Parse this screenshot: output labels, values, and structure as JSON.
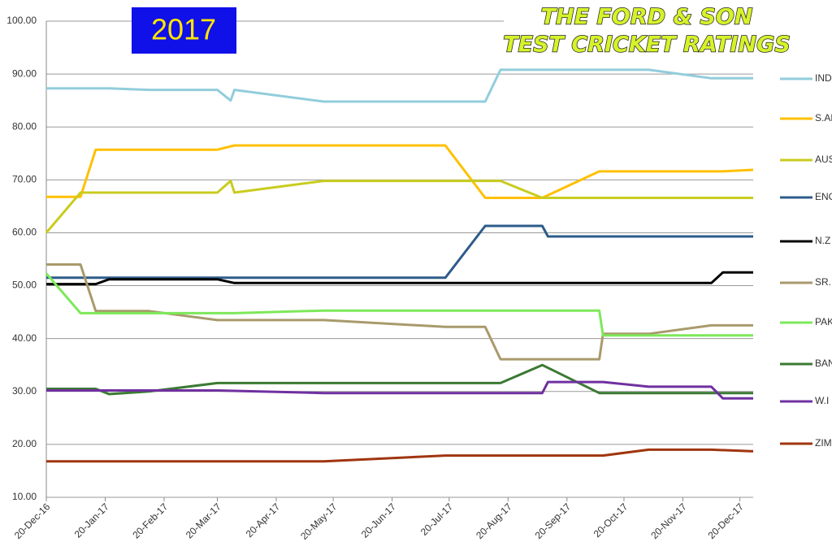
{
  "chart_data": {
    "type": "line",
    "badge": "2017",
    "title": "THE FORD & SON",
    "subtitle": "TEST CRICKET RATINGS",
    "ylim": [
      10,
      100
    ],
    "yticks": [
      {
        "value": 10,
        "label": "10.00"
      },
      {
        "value": 20,
        "label": "20.00"
      },
      {
        "value": 30,
        "label": "30.00"
      },
      {
        "value": 40,
        "label": "40.00"
      },
      {
        "value": 50,
        "label": "50.00"
      },
      {
        "value": 60,
        "label": "60.00"
      },
      {
        "value": 70,
        "label": "70.00"
      },
      {
        "value": 80,
        "label": "80.00"
      },
      {
        "value": 90,
        "label": "90.00"
      },
      {
        "value": 100,
        "label": "100.00"
      }
    ],
    "xlim": [
      "2016-12-20",
      "2017-12-27"
    ],
    "xticks": [
      {
        "value": "2016-12-20",
        "label": "20-Dec-16"
      },
      {
        "value": "2017-01-20",
        "label": "20-Jan-17"
      },
      {
        "value": "2017-02-20",
        "label": "20-Feb-17"
      },
      {
        "value": "2017-03-20",
        "label": "20-Mar-17"
      },
      {
        "value": "2017-04-20",
        "label": "20-Apr-17"
      },
      {
        "value": "2017-05-20",
        "label": "20-May-17"
      },
      {
        "value": "2017-06-20",
        "label": "20-Jun-17"
      },
      {
        "value": "2017-07-20",
        "label": "20-Jul-17"
      },
      {
        "value": "2017-08-20",
        "label": "20-Aug-17"
      },
      {
        "value": "2017-09-20",
        "label": "20-Sep-17"
      },
      {
        "value": "2017-10-20",
        "label": "20-Oct-17"
      },
      {
        "value": "2017-11-20",
        "label": "20-Nov-17"
      },
      {
        "value": "2017-12-20",
        "label": "20-Dec-17"
      }
    ],
    "grid": true,
    "legend": "right",
    "series": [
      {
        "name": "IND",
        "color": "#92cddc",
        "x": [
          "2016-12-20",
          "2017-01-22",
          "2017-02-12",
          "2017-03-20",
          "2017-03-27",
          "2017-03-29",
          "2017-05-15",
          "2017-08-08",
          "2017-08-16",
          "2017-11-02",
          "2017-12-05",
          "2017-12-27"
        ],
        "values": [
          87.3,
          87.3,
          87,
          87,
          85,
          87,
          84.8,
          84.8,
          90.8,
          90.8,
          89.2,
          89.2
        ]
      },
      {
        "name": "S.AF",
        "color": "#ffc000",
        "x": [
          "2016-12-20",
          "2017-01-07",
          "2017-01-15",
          "2017-03-20",
          "2017-03-29",
          "2017-07-18",
          "2017-08-08",
          "2017-09-07",
          "2017-10-07",
          "2017-12-11",
          "2017-12-27"
        ],
        "values": [
          66.8,
          66.8,
          75.7,
          75.7,
          76.5,
          76.5,
          66.6,
          66.6,
          71.6,
          71.6,
          71.9
        ]
      },
      {
        "name": "AUS",
        "color": "#c9cc1e",
        "x": [
          "2016-12-20",
          "2017-01-07",
          "2017-03-20",
          "2017-03-27",
          "2017-03-29",
          "2017-05-15",
          "2017-08-16",
          "2017-09-07",
          "2017-12-27"
        ],
        "values": [
          60,
          67.6,
          67.6,
          69.8,
          67.6,
          69.8,
          69.8,
          66.6,
          66.6
        ]
      },
      {
        "name": "ENG",
        "color": "#2e5c8a",
        "x": [
          "2016-12-20",
          "2017-07-18",
          "2017-08-08",
          "2017-09-07",
          "2017-09-10",
          "2017-12-27"
        ],
        "values": [
          51.5,
          51.5,
          61.3,
          61.3,
          59.3,
          59.3
        ]
      },
      {
        "name": "N.Z",
        "color": "#000000",
        "x": [
          "2016-12-20",
          "2017-01-15",
          "2017-01-22",
          "2017-03-20",
          "2017-03-29",
          "2017-12-05",
          "2017-12-11",
          "2017-12-27"
        ],
        "values": [
          50.3,
          50.3,
          51.2,
          51.2,
          50.5,
          50.5,
          52.5,
          52.5
        ]
      },
      {
        "name": "SR.L",
        "color": "#a99a6c",
        "x": [
          "2016-12-20",
          "2017-01-07",
          "2017-01-15",
          "2017-02-12",
          "2017-03-20",
          "2017-05-15",
          "2017-07-18",
          "2017-08-08",
          "2017-08-16",
          "2017-10-07",
          "2017-10-09",
          "2017-11-02",
          "2017-12-05",
          "2017-12-27"
        ],
        "values": [
          54,
          54,
          45.2,
          45.2,
          43.5,
          43.5,
          42.2,
          42.2,
          36.1,
          36.1,
          40.9,
          40.9,
          42.5,
          42.5
        ]
      },
      {
        "name": "PAK",
        "color": "#7de85a",
        "x": [
          "2016-12-20",
          "2017-01-07",
          "2017-03-29",
          "2017-05-15",
          "2017-10-07",
          "2017-10-09",
          "2017-12-27"
        ],
        "values": [
          52.3,
          44.8,
          44.8,
          45.3,
          45.3,
          40.6,
          40.6
        ]
      },
      {
        "name": "BAN",
        "color": "#3b7a33",
        "x": [
          "2016-12-20",
          "2017-01-15",
          "2017-01-22",
          "2017-02-12",
          "2017-03-20",
          "2017-08-16",
          "2017-09-07",
          "2017-10-07",
          "2017-12-27"
        ],
        "values": [
          30.5,
          30.5,
          29.5,
          30,
          31.6,
          31.6,
          35,
          29.7,
          29.7
        ]
      },
      {
        "name": "W.I",
        "color": "#7030a0",
        "x": [
          "2016-12-20",
          "2017-03-20",
          "2017-05-15",
          "2017-09-07",
          "2017-09-10",
          "2017-10-09",
          "2017-11-02",
          "2017-12-05",
          "2017-12-11",
          "2017-12-27"
        ],
        "values": [
          30.2,
          30.2,
          29.7,
          29.7,
          31.8,
          31.8,
          30.9,
          30.9,
          28.7,
          28.7
        ]
      },
      {
        "name": "ZIM",
        "color": "#a0350f",
        "x": [
          "2016-12-20",
          "2017-05-15",
          "2017-07-18",
          "2017-10-09",
          "2017-11-02",
          "2017-12-05",
          "2017-12-27"
        ],
        "values": [
          16.8,
          16.8,
          17.9,
          17.9,
          19,
          19,
          18.7
        ]
      }
    ]
  }
}
